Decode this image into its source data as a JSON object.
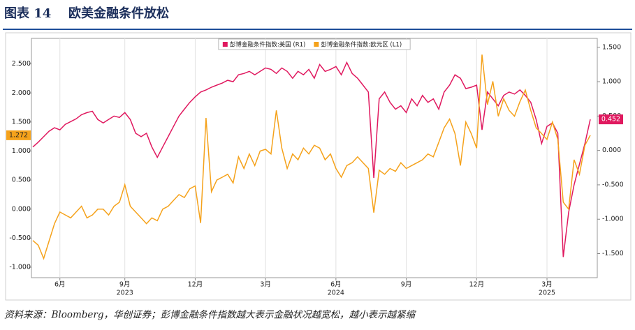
{
  "chart_data": {
    "type": "line",
    "figure_label": "图表 14",
    "title": "欧美金融条件放松",
    "source": "资料来源：Bloomberg，华创证券；彭博金融条件指数越大表示金融状况越宽松，越小表示越紧缩",
    "categories": [
      null,
      null,
      null,
      null,
      null,
      "6月",
      null,
      null,
      null,
      null,
      null,
      null,
      null,
      null,
      null,
      null,
      null,
      "9月",
      null,
      null,
      null,
      null,
      null,
      null,
      null,
      null,
      null,
      null,
      null,
      null,
      "12月",
      null,
      null,
      null,
      null,
      null,
      null,
      null,
      null,
      null,
      null,
      null,
      null,
      "3月",
      null,
      null,
      null,
      null,
      null,
      null,
      null,
      null,
      null,
      null,
      null,
      null,
      "6月",
      null,
      null,
      null,
      null,
      null,
      null,
      null,
      null,
      null,
      null,
      null,
      null,
      "9月",
      null,
      null,
      null,
      null,
      null,
      null,
      null,
      null,
      null,
      null,
      null,
      null,
      "12月",
      null,
      null,
      null,
      null,
      null,
      null,
      null,
      null,
      null,
      null,
      null,
      null,
      "3月",
      null,
      null,
      null,
      null,
      null,
      null,
      null,
      null
    ],
    "year_labels": [
      null,
      null,
      null,
      null,
      null,
      null,
      null,
      null,
      null,
      null,
      null,
      null,
      null,
      null,
      null,
      null,
      null,
      "2023",
      null,
      null,
      null,
      null,
      null,
      null,
      null,
      null,
      null,
      null,
      null,
      null,
      null,
      null,
      null,
      null,
      null,
      null,
      null,
      null,
      null,
      null,
      null,
      null,
      null,
      null,
      null,
      null,
      null,
      null,
      null,
      null,
      null,
      null,
      null,
      null,
      null,
      null,
      "2024",
      null,
      null,
      null,
      null,
      null,
      null,
      null,
      null,
      null,
      null,
      null,
      null,
      null,
      null,
      null,
      null,
      null,
      null,
      null,
      null,
      null,
      null,
      null,
      null,
      null,
      null,
      null,
      null,
      null,
      null,
      null,
      null,
      null,
      null,
      null,
      null,
      null,
      null,
      "2025",
      null,
      null,
      null,
      null,
      null,
      null,
      null,
      null
    ],
    "series": [
      {
        "name": "彭博金融条件指数:美国 (R1)",
        "color": "#e0195f",
        "axis": "y2",
        "values": [
          0.05,
          0.12,
          0.2,
          0.28,
          0.33,
          0.3,
          0.38,
          0.42,
          0.46,
          0.52,
          0.55,
          0.57,
          0.45,
          0.4,
          0.45,
          0.5,
          0.48,
          0.55,
          0.45,
          0.25,
          0.2,
          0.25,
          0.05,
          -0.1,
          0.05,
          0.2,
          0.35,
          0.5,
          0.6,
          0.7,
          0.78,
          0.85,
          0.88,
          0.92,
          0.95,
          0.98,
          1.02,
          1.0,
          1.1,
          1.12,
          1.15,
          1.1,
          1.15,
          1.2,
          1.18,
          1.12,
          1.2,
          1.15,
          1.05,
          1.15,
          1.1,
          1.18,
          1.05,
          1.25,
          1.15,
          1.18,
          1.22,
          1.1,
          1.28,
          1.12,
          1.05,
          0.95,
          0.85,
          -0.4,
          0.75,
          0.85,
          0.7,
          0.6,
          0.65,
          0.55,
          0.75,
          0.65,
          0.8,
          0.7,
          0.75,
          0.6,
          0.85,
          0.95,
          1.1,
          1.05,
          0.9,
          0.92,
          0.95,
          0.3,
          0.85,
          0.75,
          0.65,
          0.8,
          0.85,
          0.82,
          0.88,
          0.8,
          0.7,
          0.45,
          0.1,
          0.35,
          0.4,
          0.25,
          -1.55,
          -0.9,
          -0.5,
          -0.2,
          0.1,
          0.452
        ]
      },
      {
        "name": "彭博金融条件指数:欧元区 (L1)",
        "color": "#f5a21b",
        "axis": "y",
        "values": [
          -0.54,
          -0.62,
          -0.85,
          -0.55,
          -0.25,
          -0.05,
          -0.1,
          -0.15,
          -0.05,
          0.05,
          -0.15,
          -0.1,
          0.0,
          0.0,
          -0.1,
          0.05,
          0.12,
          0.42,
          0.05,
          -0.05,
          -0.15,
          -0.25,
          -0.15,
          -0.2,
          0.0,
          0.05,
          0.15,
          0.25,
          0.2,
          0.35,
          0.4,
          -0.24,
          1.57,
          0.3,
          0.5,
          0.55,
          0.6,
          0.45,
          0.9,
          0.7,
          0.95,
          0.75,
          1.0,
          1.03,
          0.95,
          1.7,
          1.05,
          0.7,
          0.95,
          0.85,
          1.05,
          0.95,
          1.1,
          1.05,
          0.85,
          0.95,
          0.7,
          0.55,
          0.75,
          0.8,
          0.9,
          0.8,
          0.7,
          -0.06,
          0.67,
          0.6,
          0.7,
          0.65,
          0.8,
          0.7,
          0.75,
          0.8,
          0.85,
          0.95,
          0.9,
          1.15,
          1.4,
          1.55,
          1.3,
          0.75,
          1.5,
          1.3,
          1.05,
          2.66,
          1.8,
          2.2,
          1.6,
          1.9,
          1.7,
          1.6,
          1.85,
          2.05,
          1.7,
          1.4,
          1.3,
          1.2,
          1.5,
          1.2,
          0.12,
          0.0,
          0.85,
          0.6,
          1.1,
          1.272
        ]
      }
    ],
    "ylim": [
      -1.18,
      2.94
    ],
    "yticks": [
      {
        "value": -1,
        "label": "-1.000"
      },
      {
        "value": -0.5,
        "label": "-0.500"
      },
      {
        "value": 0,
        "label": "0.000"
      },
      {
        "value": 0.5,
        "label": "0.500"
      },
      {
        "value": 1,
        "label": "1.000"
      },
      {
        "value": 1.5,
        "label": "1.500"
      },
      {
        "value": 2,
        "label": "2.000"
      },
      {
        "value": 2.5,
        "label": "2.500"
      }
    ],
    "y2lim": [
      -1.85,
      1.63
    ],
    "y2ticks": [
      {
        "value": -1.5,
        "label": "-1.500"
      },
      {
        "value": -1,
        "label": "-1.000"
      },
      {
        "value": -0.5,
        "label": "-0.500"
      },
      {
        "value": 0,
        "label": "0.000"
      },
      {
        "value": 0.5,
        "label": "0.500"
      },
      {
        "value": 1,
        "label": "1.000"
      },
      {
        "value": 1.5,
        "label": "1.500"
      }
    ],
    "legend": "top"
  }
}
